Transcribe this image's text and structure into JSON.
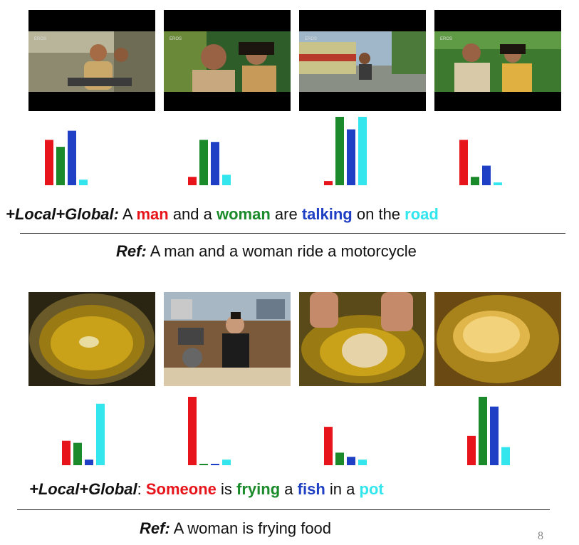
{
  "colors": {
    "c1": "#e8141b",
    "c2": "#1a8a2a",
    "c3": "#1f3fc4",
    "c4": "#33e6ee"
  },
  "examples": [
    {
      "frames": [
        "motorcycle-frame-1",
        "motorcycle-frame-2",
        "motorcycle-frame-3",
        "motorcycle-frame-4"
      ],
      "pred_label": "+Local+Global:",
      "pred_words": [
        "A",
        "man",
        "and a",
        "woman",
        "are",
        "talking",
        "on the",
        "road"
      ],
      "ref_label": "Ref:",
      "ref_text": "A man and a woman ride a motorcycle"
    },
    {
      "frames": [
        "frying-pot-frame",
        "woman-kitchen-frame",
        "hands-frying-frame",
        "fried-food-frame"
      ],
      "pred_label": "+Local+Global",
      "pred_colon": ":",
      "pred_words": [
        "Someone",
        "is",
        "frying",
        "a",
        "fish",
        "in a",
        "pot"
      ],
      "ref_label": "Ref:",
      "ref_text": "A woman is frying food"
    }
  ],
  "chart_data": [
    {
      "type": "bar",
      "categories": [
        "1",
        "2",
        "3",
        "4"
      ],
      "values": [
        0.65,
        0.55,
        0.78,
        0.08
      ]
    },
    {
      "type": "bar",
      "categories": [
        "1",
        "2",
        "3",
        "4"
      ],
      "values": [
        0.12,
        0.65,
        0.62,
        0.15
      ]
    },
    {
      "type": "bar",
      "categories": [
        "1",
        "2",
        "3",
        "4"
      ],
      "values": [
        0.06,
        0.98,
        0.8,
        0.98
      ]
    },
    {
      "type": "bar",
      "categories": [
        "1",
        "2",
        "3",
        "4"
      ],
      "values": [
        0.65,
        0.12,
        0.28,
        0.04
      ]
    },
    {
      "type": "bar",
      "categories": [
        "1",
        "2",
        "3",
        "4"
      ],
      "values": [
        0.35,
        0.32,
        0.08,
        0.88
      ]
    },
    {
      "type": "bar",
      "categories": [
        "1",
        "2",
        "3",
        "4"
      ],
      "values": [
        0.98,
        0.02,
        0.02,
        0.08
      ]
    },
    {
      "type": "bar",
      "categories": [
        "1",
        "2",
        "3",
        "4"
      ],
      "values": [
        0.55,
        0.18,
        0.12,
        0.08
      ]
    },
    {
      "type": "bar",
      "categories": [
        "1",
        "2",
        "3",
        "4"
      ],
      "values": [
        0.42,
        0.98,
        0.84,
        0.26
      ]
    }
  ],
  "page_number": "8"
}
